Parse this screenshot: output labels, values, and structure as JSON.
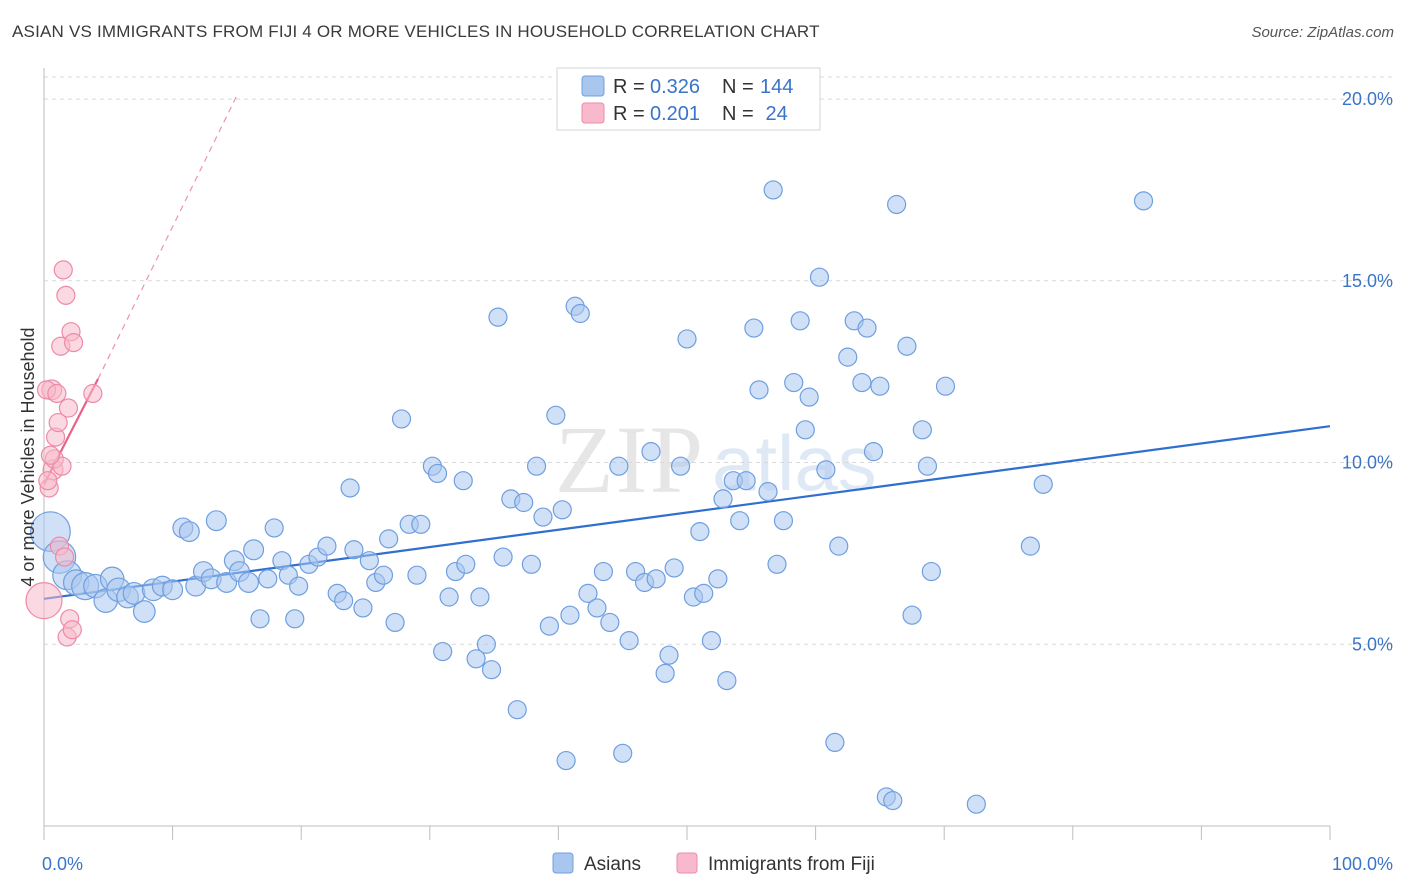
{
  "title": "ASIAN VS IMMIGRANTS FROM FIJI 4 OR MORE VEHICLES IN HOUSEHOLD CORRELATION CHART",
  "source": "Source: ZipAtlas.com",
  "watermark": {
    "zip": "ZIP",
    "atlas": "atlas"
  },
  "colors": {
    "asian_fill": "#a9c7ee",
    "asian_stroke": "#6f9fe0",
    "asian_line": "#2e6fd0",
    "fiji_fill": "#f7b9cb",
    "fiji_stroke": "#ee8aa8",
    "fiji_line": "#e8628a",
    "tick_text": "#3a74c8",
    "grid": "#d9d9d9"
  },
  "legend": {
    "rows": [
      {
        "r_label": "R = ",
        "r_value": "0.326",
        "n_label": "N = ",
        "n_value": "144",
        "series": "asian"
      },
      {
        "r_label": "R = ",
        "r_value": "0.201",
        "n_label": "N = ",
        "n_value": " 24",
        "series": "fiji"
      }
    ]
  },
  "chart_data": {
    "type": "scatter",
    "xlabel": "",
    "ylabel": "4 or more Vehicles in Household",
    "xlim": [
      0,
      100
    ],
    "ylim": [
      0,
      20.8
    ],
    "x_tick_labels": [
      "0.0%",
      "100.0%"
    ],
    "y_ticks": [
      5,
      10,
      15,
      20
    ],
    "y_tick_labels": [
      "5.0%",
      "10.0%",
      "15.0%",
      "20.0%"
    ],
    "grid": true,
    "series": [
      {
        "name": "Asians",
        "key": "asian",
        "trend": {
          "x": [
            0,
            100
          ],
          "y": [
            6.25,
            11.0
          ],
          "style": "solid"
        },
        "points": [
          [
            0.5,
            8.1,
            2.2
          ],
          [
            1.2,
            7.4,
            1.8
          ],
          [
            1.8,
            6.9,
            1.6
          ],
          [
            2.5,
            6.7,
            1.4
          ],
          [
            3.2,
            6.6,
            1.5
          ],
          [
            4.0,
            6.6,
            1.3
          ],
          [
            4.8,
            6.2,
            1.3
          ],
          [
            5.3,
            6.8,
            1.3
          ],
          [
            5.8,
            6.5,
            1.3
          ],
          [
            6.5,
            6.3,
            1.2
          ],
          [
            7.0,
            6.4,
            1.2
          ],
          [
            7.8,
            5.9,
            1.2
          ],
          [
            8.5,
            6.5,
            1.2
          ],
          [
            9.2,
            6.6,
            1.1
          ],
          [
            10.0,
            6.5,
            1.1
          ],
          [
            10.8,
            8.2,
            1.1
          ],
          [
            11.3,
            8.1,
            1.1
          ],
          [
            11.8,
            6.6,
            1.1
          ],
          [
            12.4,
            7.0,
            1.1
          ],
          [
            13.0,
            6.8,
            1.1
          ],
          [
            13.4,
            8.4,
            1.1
          ],
          [
            14.2,
            6.7,
            1.1
          ],
          [
            14.8,
            7.3,
            1.1
          ],
          [
            15.2,
            7.0,
            1.1
          ],
          [
            15.9,
            6.7,
            1.1
          ],
          [
            16.3,
            7.6,
            1.1
          ],
          [
            16.8,
            5.7,
            1.0
          ],
          [
            17.4,
            6.8,
            1.0
          ],
          [
            17.9,
            8.2,
            1.0
          ],
          [
            18.5,
            7.3,
            1.0
          ],
          [
            19.0,
            6.9,
            1.0
          ],
          [
            19.5,
            5.7,
            1.0
          ],
          [
            19.8,
            6.6,
            1.0
          ],
          [
            20.6,
            7.2,
            1.0
          ],
          [
            21.3,
            7.4,
            1.0
          ],
          [
            22.0,
            7.7,
            1.0
          ],
          [
            22.8,
            6.4,
            1.0
          ],
          [
            23.3,
            6.2,
            1.0
          ],
          [
            23.8,
            9.3,
            1.0
          ],
          [
            24.1,
            7.6,
            1.0
          ],
          [
            24.8,
            6.0,
            1.0
          ],
          [
            25.3,
            7.3,
            1.0
          ],
          [
            25.8,
            6.7,
            1.0
          ],
          [
            26.4,
            6.9,
            1.0
          ],
          [
            26.8,
            7.9,
            1.0
          ],
          [
            27.3,
            5.6,
            1.0
          ],
          [
            27.8,
            11.2,
            1.0
          ],
          [
            28.4,
            8.3,
            1.0
          ],
          [
            29.0,
            6.9,
            1.0
          ],
          [
            29.3,
            8.3,
            1.0
          ],
          [
            30.2,
            9.9,
            1.0
          ],
          [
            30.6,
            9.7,
            1.0
          ],
          [
            31.0,
            4.8,
            1.0
          ],
          [
            31.5,
            6.3,
            1.0
          ],
          [
            32.0,
            7.0,
            1.0
          ],
          [
            32.6,
            9.5,
            1.0
          ],
          [
            32.8,
            7.2,
            1.0
          ],
          [
            33.6,
            4.6,
            1.0
          ],
          [
            33.9,
            6.3,
            1.0
          ],
          [
            34.4,
            5.0,
            1.0
          ],
          [
            34.8,
            4.3,
            1.0
          ],
          [
            35.3,
            14.0,
            1.0
          ],
          [
            35.7,
            7.4,
            1.0
          ],
          [
            36.3,
            9.0,
            1.0
          ],
          [
            36.8,
            3.2,
            1.0
          ],
          [
            37.3,
            8.9,
            1.0
          ],
          [
            37.9,
            7.2,
            1.0
          ],
          [
            38.3,
            9.9,
            1.0
          ],
          [
            38.8,
            8.5,
            1.0
          ],
          [
            39.3,
            5.5,
            1.0
          ],
          [
            39.8,
            11.3,
            1.0
          ],
          [
            40.3,
            8.7,
            1.0
          ],
          [
            40.6,
            1.8,
            1.0
          ],
          [
            40.9,
            5.8,
            1.0
          ],
          [
            41.3,
            14.3,
            1.0
          ],
          [
            41.7,
            14.1,
            1.0
          ],
          [
            42.3,
            6.4,
            1.0
          ],
          [
            43.0,
            6.0,
            1.0
          ],
          [
            43.5,
            7.0,
            1.0
          ],
          [
            44.0,
            5.6,
            1.0
          ],
          [
            44.7,
            9.9,
            1.0
          ],
          [
            45.0,
            2.0,
            1.0
          ],
          [
            45.5,
            5.1,
            1.0
          ],
          [
            46.0,
            7.0,
            1.0
          ],
          [
            46.7,
            6.7,
            1.0
          ],
          [
            47.2,
            10.3,
            1.0
          ],
          [
            47.6,
            6.8,
            1.0
          ],
          [
            48.3,
            4.2,
            1.0
          ],
          [
            48.6,
            4.7,
            1.0
          ],
          [
            49.0,
            7.1,
            1.0
          ],
          [
            49.5,
            9.9,
            1.0
          ],
          [
            50.0,
            13.4,
            1.0
          ],
          [
            50.5,
            6.3,
            1.0
          ],
          [
            51.0,
            8.1,
            1.0
          ],
          [
            51.3,
            6.4,
            1.0
          ],
          [
            51.9,
            5.1,
            1.0
          ],
          [
            52.4,
            6.8,
            1.0
          ],
          [
            52.8,
            9.0,
            1.0
          ],
          [
            53.1,
            4.0,
            1.0
          ],
          [
            53.6,
            9.5,
            1.0
          ],
          [
            54.1,
            8.4,
            1.0
          ],
          [
            54.6,
            9.5,
            1.0
          ],
          [
            55.2,
            13.7,
            1.0
          ],
          [
            55.6,
            12.0,
            1.0
          ],
          [
            56.3,
            9.2,
            1.0
          ],
          [
            56.7,
            17.5,
            1.0
          ],
          [
            57.0,
            7.2,
            1.0
          ],
          [
            57.5,
            8.4,
            1.0
          ],
          [
            58.3,
            12.2,
            1.0
          ],
          [
            58.8,
            13.9,
            1.0
          ],
          [
            59.2,
            10.9,
            1.0
          ],
          [
            59.5,
            11.8,
            1.0
          ],
          [
            60.3,
            15.1,
            1.0
          ],
          [
            60.8,
            9.8,
            1.0
          ],
          [
            61.5,
            2.3,
            1.0
          ],
          [
            61.8,
            7.7,
            1.0
          ],
          [
            62.5,
            12.9,
            1.0
          ],
          [
            63.0,
            13.9,
            1.0
          ],
          [
            63.6,
            12.2,
            1.0
          ],
          [
            64.0,
            13.7,
            1.0
          ],
          [
            64.5,
            10.3,
            1.0
          ],
          [
            65.0,
            12.1,
            1.0
          ],
          [
            65.5,
            0.8,
            1.0
          ],
          [
            66.0,
            0.7,
            1.0
          ],
          [
            66.3,
            17.1,
            1.0
          ],
          [
            67.1,
            13.2,
            1.0
          ],
          [
            67.5,
            5.8,
            1.0
          ],
          [
            68.3,
            10.9,
            1.0
          ],
          [
            68.7,
            9.9,
            1.0
          ],
          [
            69.0,
            7.0,
            1.0
          ],
          [
            70.1,
            12.1,
            1.0
          ],
          [
            72.5,
            0.6,
            1.0
          ],
          [
            76.7,
            7.7,
            1.0
          ],
          [
            77.7,
            9.4,
            1.0
          ],
          [
            85.5,
            17.2,
            1.0
          ]
        ]
      },
      {
        "name": "Immigrants from Fiji",
        "key": "fiji",
        "trend": {
          "x": [
            0,
            4.2
          ],
          "y": [
            9.4,
            12.3
          ],
          "style": "solid",
          "extended": {
            "x": [
              4.2,
              15
            ],
            "y": [
              12.3,
              20.1
            ],
            "style": "dashed"
          }
        },
        "points": [
          [
            0.0,
            6.2,
            2.0
          ],
          [
            0.4,
            9.3,
            1.0
          ],
          [
            0.6,
            12.0,
            1.1
          ],
          [
            0.7,
            9.8,
            1.1
          ],
          [
            0.8,
            10.1,
            1.0
          ],
          [
            0.9,
            10.7,
            1.0
          ],
          [
            1.1,
            11.1,
            1.0
          ],
          [
            1.2,
            7.7,
            1.0
          ],
          [
            1.3,
            13.2,
            1.0
          ],
          [
            1.4,
            9.9,
            1.0
          ],
          [
            1.5,
            15.3,
            1.0
          ],
          [
            1.6,
            7.4,
            1.0
          ],
          [
            1.7,
            14.6,
            1.0
          ],
          [
            1.8,
            5.2,
            1.0
          ],
          [
            1.9,
            11.5,
            1.0
          ],
          [
            2.0,
            5.7,
            1.0
          ],
          [
            2.1,
            13.6,
            1.0
          ],
          [
            2.2,
            5.4,
            1.0
          ],
          [
            2.3,
            13.3,
            1.0
          ],
          [
            0.3,
            9.5,
            1.0
          ],
          [
            0.5,
            10.2,
            1.0
          ],
          [
            0.2,
            12.0,
            1.0
          ],
          [
            3.8,
            11.9,
            1.0
          ],
          [
            1.0,
            11.9,
            1.0
          ]
        ]
      }
    ]
  },
  "bottom_legend": {
    "items": [
      {
        "label": "Asians",
        "series": "asian"
      },
      {
        "label": "Immigrants from Fiji",
        "series": "fiji"
      }
    ]
  }
}
